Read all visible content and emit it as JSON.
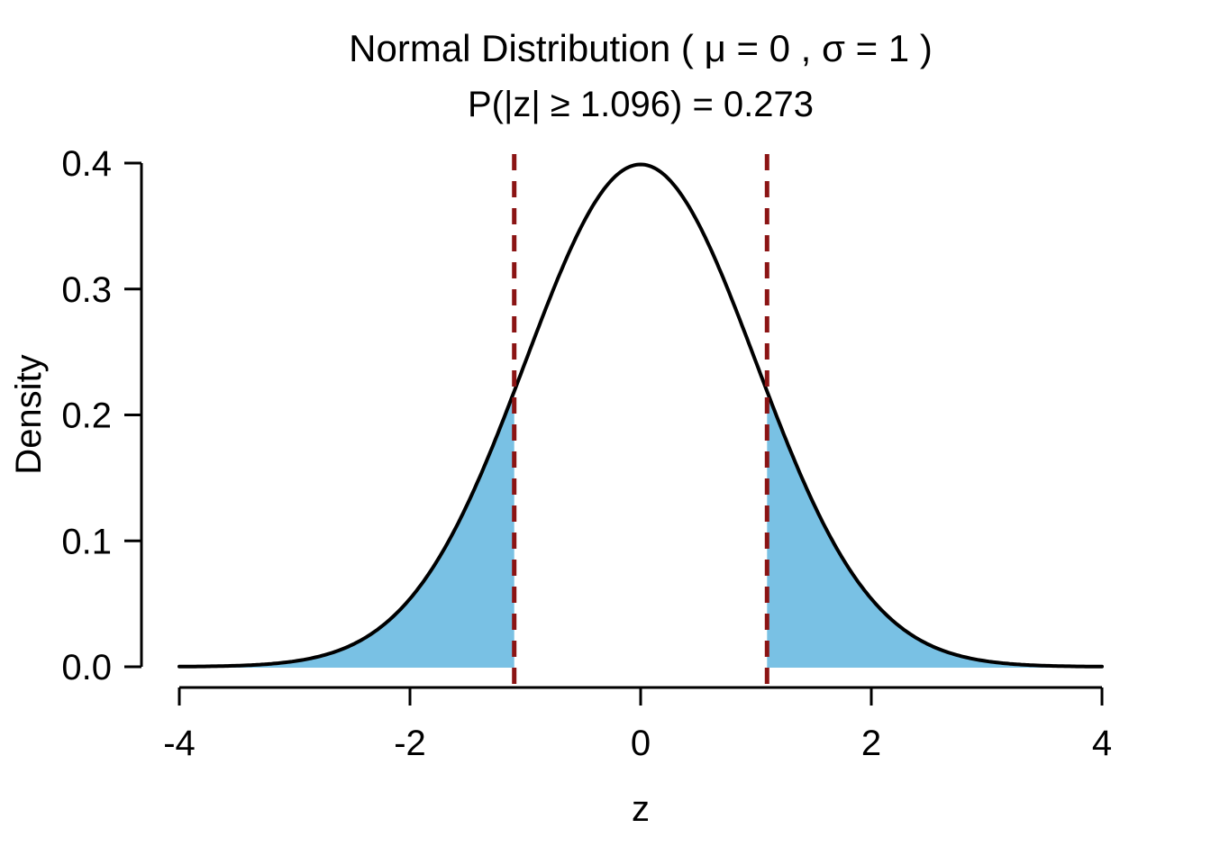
{
  "chart_data": {
    "type": "area",
    "title": "Normal Distribution ( μ = 0 , σ = 1 )",
    "subtitle": "P(|z| ≥ 1.096) = 0.273",
    "xlabel": "z",
    "ylabel": "Density",
    "xlim": [
      -4,
      4
    ],
    "ylim": [
      0,
      0.4
    ],
    "x_tick_values": [
      -4,
      -2,
      0,
      2,
      4
    ],
    "x_tick_labels": [
      "-4",
      "-2",
      "0",
      "2",
      "4"
    ],
    "y_tick_values": [
      0,
      0.1,
      0.2,
      0.3,
      0.4
    ],
    "y_tick_labels": [
      "0.0",
      "0.1",
      "0.2",
      "0.3",
      "0.4"
    ],
    "distribution": {
      "name": "normal",
      "mu": 0,
      "sigma": 1,
      "peak_density": 0.3989
    },
    "critical_value": 1.096,
    "two_tail_probability": 0.273,
    "vertical_dashed_lines": [
      -1.096,
      1.096
    ],
    "shaded_regions": [
      {
        "from": -4,
        "to": -1.096
      },
      {
        "from": 1.096,
        "to": 4
      }
    ],
    "grid": false,
    "legend": null,
    "colors": {
      "curve": "#000000",
      "shade_fill": "#79C1E4",
      "dashed_line": "#8B1414",
      "axis": "#000000",
      "text": "#000000",
      "background": "#FFFFFF"
    }
  }
}
